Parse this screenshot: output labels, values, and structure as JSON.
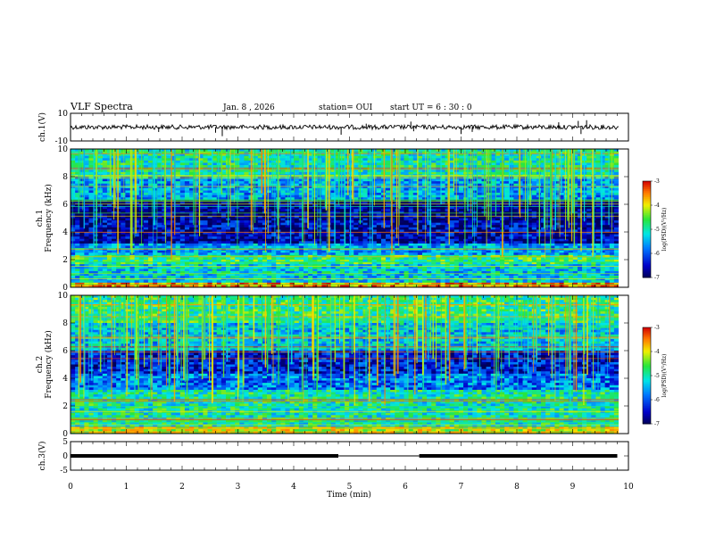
{
  "header": {
    "title": "VLF Spectra",
    "date": "Jan. 8 , 2026",
    "station": "station= OUI",
    "start_ut": "start UT = 6 : 30 : 0"
  },
  "chart_data": [
    {
      "type": "line",
      "name": "ch1-waveform",
      "ylabel": "ch.1(V)",
      "ylim": [
        -10,
        10
      ],
      "ytick_labels": [
        "10",
        "-10"
      ],
      "xlim": [
        0,
        10
      ],
      "baseline_v": 0,
      "spikes": [
        {
          "t": 1.58,
          "v": -3.5
        },
        {
          "t": 2.6,
          "v": -4.0
        },
        {
          "t": 2.72,
          "v": -6.5
        },
        {
          "t": 4.85,
          "v": -5.5
        },
        {
          "t": 5.3,
          "v": 2.5
        },
        {
          "t": 6.1,
          "v": 4.0
        },
        {
          "t": 6.15,
          "v": -3.0
        },
        {
          "t": 7.0,
          "v": -5.0
        },
        {
          "t": 7.2,
          "v": -3.5
        },
        {
          "t": 8.75,
          "v": 3.5
        },
        {
          "t": 9.1,
          "v": 4.5
        },
        {
          "t": 9.15,
          "v": -5.0
        },
        {
          "t": 9.25,
          "v": 5.0
        }
      ]
    },
    {
      "type": "heatmap",
      "name": "ch1-spectrogram",
      "ylabel": "ch.1\nFrequency (kHz)",
      "ylim": [
        0,
        10
      ],
      "ytick_labels": [
        "0",
        "2",
        "4",
        "6",
        "8",
        "10"
      ],
      "xlim": [
        0,
        10
      ],
      "colorbar": {
        "label": "log(PSD)(V²/Hz)",
        "min": -7,
        "max": -3,
        "tick_labels": [
          "-3",
          "-4",
          "-5",
          "-6",
          "-7"
        ]
      },
      "bands_khz": [
        {
          "f0": 0.0,
          "f1": 0.4,
          "level": -3.6
        },
        {
          "f0": 0.4,
          "f1": 1.6,
          "level": -5.3
        },
        {
          "f0": 1.6,
          "f1": 2.4,
          "level": -4.8
        },
        {
          "f0": 2.4,
          "f1": 3.2,
          "level": -5.6
        },
        {
          "f0": 3.2,
          "f1": 4.8,
          "level": -6.6
        },
        {
          "f0": 4.8,
          "f1": 6.4,
          "level": -6.8
        },
        {
          "f0": 6.4,
          "f1": 8.0,
          "level": -5.6
        },
        {
          "f0": 8.0,
          "f1": 10.0,
          "level": -5.0
        }
      ]
    },
    {
      "type": "heatmap",
      "name": "ch2-spectrogram",
      "ylabel": "ch.2\nFrequency (kHz)",
      "ylim": [
        0,
        10
      ],
      "ytick_labels": [
        "0",
        "2",
        "4",
        "6",
        "8",
        "10"
      ],
      "xlim": [
        0,
        10
      ],
      "colorbar": {
        "label": "log(PSD)(V²/Hz)",
        "min": -7,
        "max": -3,
        "tick_labels": [
          "-3",
          "-4",
          "-5",
          "-6",
          "-7"
        ]
      },
      "bands_khz": [
        {
          "f0": 0.0,
          "f1": 0.5,
          "level": -4.2
        },
        {
          "f0": 0.5,
          "f1": 2.0,
          "level": -5.0
        },
        {
          "f0": 2.0,
          "f1": 3.2,
          "level": -5.0
        },
        {
          "f0": 3.2,
          "f1": 4.4,
          "level": -5.8
        },
        {
          "f0": 4.4,
          "f1": 6.0,
          "level": -6.4
        },
        {
          "f0": 6.0,
          "f1": 8.0,
          "level": -5.4
        },
        {
          "f0": 8.0,
          "f1": 10.0,
          "level": -4.8
        }
      ]
    },
    {
      "type": "line",
      "name": "ch3-signal",
      "ylabel": "ch.3(V)",
      "ylim": [
        -5,
        5
      ],
      "ytick_labels": [
        "5",
        "0",
        "-5"
      ],
      "xlim": [
        0,
        10
      ],
      "xlabel": "Time (min)",
      "xtick_labels": [
        "0",
        "1",
        "2",
        "3",
        "4",
        "5",
        "6",
        "7",
        "8",
        "9",
        "10"
      ],
      "segments": [
        {
          "t0": 0.0,
          "t1": 4.8,
          "v": 0,
          "thick": true
        },
        {
          "t0": 4.8,
          "t1": 6.25,
          "v": 0,
          "thick": false
        },
        {
          "t0": 6.25,
          "t1": 9.8,
          "v": 0,
          "thick": true
        }
      ]
    }
  ]
}
